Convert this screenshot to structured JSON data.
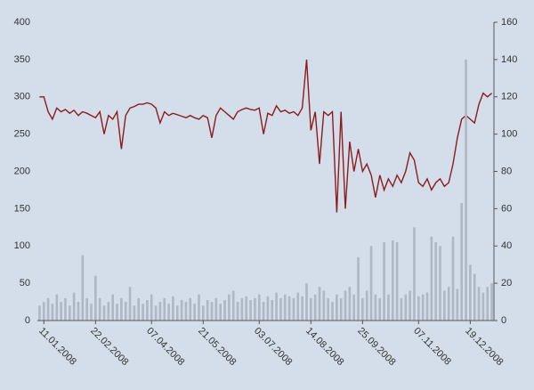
{
  "chart_data": {
    "type": "combo",
    "categories": [
      null,
      "11.01.2008",
      null,
      null,
      null,
      null,
      null,
      null,
      null,
      null,
      null,
      null,
      null,
      "22.02.2008",
      null,
      null,
      null,
      null,
      null,
      null,
      null,
      null,
      null,
      null,
      null,
      null,
      "07.04.2008",
      null,
      null,
      null,
      null,
      null,
      null,
      null,
      null,
      null,
      null,
      null,
      "21.05.2008",
      null,
      null,
      null,
      null,
      null,
      null,
      null,
      null,
      null,
      null,
      null,
      null,
      "03.07.2008",
      null,
      null,
      null,
      null,
      null,
      null,
      null,
      null,
      null,
      null,
      null,
      "14.08.2008",
      null,
      null,
      null,
      null,
      null,
      null,
      null,
      null,
      null,
      null,
      null,
      "25.09.2008",
      null,
      null,
      null,
      null,
      null,
      null,
      null,
      null,
      null,
      null,
      null,
      null,
      "07.11.2008",
      null,
      null,
      null,
      null,
      null,
      null,
      null,
      null,
      null,
      null,
      null,
      "19.12.2008",
      null,
      null,
      null,
      null,
      null
    ],
    "series": [
      {
        "type": "line",
        "color": "#8b1c1c",
        "values": [
          300,
          300,
          280,
          270,
          285,
          280,
          283,
          278,
          282,
          275,
          280,
          278,
          275,
          272,
          280,
          250,
          275,
          270,
          280,
          230,
          275,
          285,
          287,
          290,
          290,
          292,
          290,
          285,
          265,
          280,
          275,
          278,
          276,
          274,
          272,
          275,
          272,
          270,
          275,
          272,
          245,
          275,
          285,
          280,
          275,
          270,
          280,
          283,
          285,
          283,
          282,
          285,
          250,
          278,
          275,
          288,
          280,
          282,
          278,
          280,
          275,
          285,
          350,
          255,
          280,
          210,
          280,
          275,
          280,
          145,
          280,
          150,
          240,
          200,
          230,
          200,
          210,
          195,
          165,
          195,
          175,
          190,
          180,
          195,
          185,
          200,
          225,
          215,
          185,
          180,
          190,
          175,
          185,
          190,
          180,
          185,
          210,
          245,
          270,
          275,
          270,
          265,
          290,
          305,
          300,
          305
        ]
      },
      {
        "type": "bar",
        "axis": "y2",
        "color": "#aeb7c3",
        "values": [
          8,
          10,
          12,
          9,
          14,
          10,
          12,
          8,
          15,
          10,
          35,
          12,
          9,
          24,
          12,
          8,
          10,
          14,
          9,
          12,
          10,
          18,
          8,
          12,
          9,
          11,
          14,
          8,
          10,
          12,
          9,
          13,
          8,
          11,
          10,
          12,
          9,
          14,
          8,
          11,
          10,
          12,
          9,
          11,
          14,
          16,
          10,
          12,
          13,
          11,
          12,
          14,
          10,
          13,
          11,
          15,
          12,
          14,
          13,
          12,
          15,
          13,
          20,
          12,
          14,
          18,
          16,
          12,
          10,
          14,
          12,
          16,
          18,
          14,
          34,
          12,
          16,
          40,
          14,
          12,
          42,
          14,
          43,
          42,
          12,
          14,
          16,
          50,
          13,
          14,
          15,
          45,
          42,
          40,
          16,
          18,
          45,
          17,
          63,
          140,
          30,
          25,
          18,
          15,
          18,
          20
        ]
      }
    ],
    "ylim": [
      0,
      400
    ],
    "yticks": [
      0,
      50,
      100,
      150,
      200,
      250,
      300,
      350,
      400
    ],
    "y2lim": [
      0,
      160
    ],
    "y2ticks": [
      0,
      20,
      40,
      60,
      80,
      100,
      120,
      140,
      160
    ],
    "grid": false
  }
}
